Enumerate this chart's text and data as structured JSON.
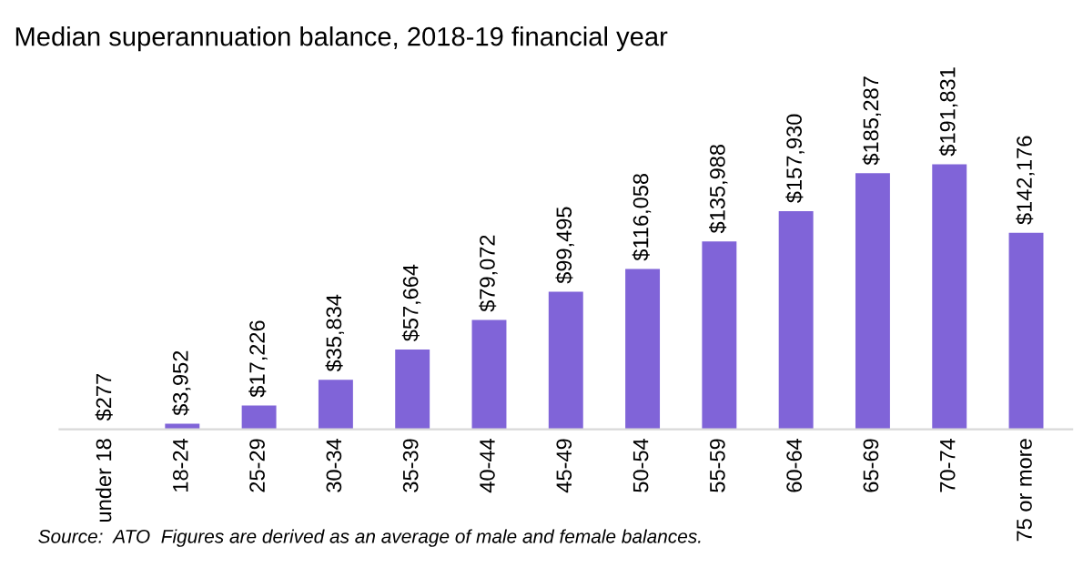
{
  "chart_data": {
    "type": "bar",
    "title": "Median superannuation balance, 2018-19 financial year",
    "categories": [
      "under 18",
      "18-24",
      "25-29",
      "30-34",
      "35-39",
      "40-44",
      "45-49",
      "50-54",
      "55-59",
      "60-64",
      "65-69",
      "70-74",
      "75 or more"
    ],
    "values": [
      277,
      3952,
      17226,
      35834,
      57664,
      79072,
      99495,
      116058,
      135988,
      157930,
      185287,
      191831,
      142176
    ],
    "value_labels": [
      "$277",
      "$3,952",
      "$17,226",
      "$35,834",
      "$57,664",
      "$79,072",
      "$99,495",
      "$116,058",
      "$135,988",
      "$157,930",
      "$185,287",
      "$191,831",
      "$142,176"
    ],
    "color": "#8064d8",
    "annotations": [
      "Source:  ATO  Figures are derived as an average of male and female balances."
    ]
  }
}
